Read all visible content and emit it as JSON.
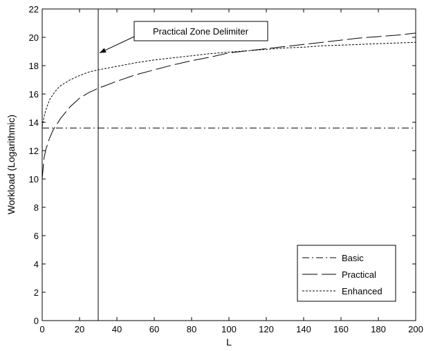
{
  "chart_data": {
    "type": "line",
    "title": "",
    "xlabel": "L",
    "ylabel": "Workload (Logarithmic)",
    "xlim": [
      0,
      200
    ],
    "ylim": [
      0,
      22
    ],
    "xticks": [
      0,
      20,
      40,
      60,
      80,
      100,
      120,
      140,
      160,
      180,
      200
    ],
    "yticks": [
      0,
      2,
      4,
      6,
      8,
      10,
      12,
      14,
      16,
      18,
      20,
      22
    ],
    "grid": false,
    "legend_position": "bottom-right",
    "series": [
      {
        "name": "Basic",
        "line_style": "dash-dot",
        "color": "#000000",
        "x": [
          0,
          200
        ],
        "y": [
          13.6,
          13.6
        ]
      },
      {
        "name": "Practical",
        "line_style": "dashed",
        "color": "#000000",
        "x": [
          0,
          1,
          2,
          4,
          6,
          8,
          10,
          15,
          20,
          25,
          30,
          40,
          50,
          60,
          70,
          80,
          90,
          100,
          110,
          120,
          130,
          140,
          150,
          160,
          170,
          180,
          190,
          200
        ],
        "y": [
          10.0,
          11.5,
          12.1,
          12.9,
          13.5,
          13.9,
          14.3,
          15.1,
          15.7,
          16.1,
          16.4,
          16.9,
          17.35,
          17.7,
          18.05,
          18.35,
          18.6,
          18.9,
          19.05,
          19.2,
          19.35,
          19.5,
          19.65,
          19.8,
          19.95,
          20.05,
          20.15,
          20.3
        ]
      },
      {
        "name": "Enhanced",
        "line_style": "dotted",
        "color": "#000000",
        "x": [
          0,
          1,
          2,
          4,
          6,
          8,
          10,
          15,
          20,
          25,
          30,
          40,
          50,
          60,
          70,
          80,
          90,
          100,
          110,
          120,
          130,
          140,
          150,
          160,
          170,
          180,
          190,
          200
        ],
        "y": [
          13.7,
          14.4,
          14.9,
          15.6,
          16.0,
          16.35,
          16.6,
          17.0,
          17.3,
          17.55,
          17.7,
          17.95,
          18.2,
          18.4,
          18.55,
          18.7,
          18.85,
          18.95,
          19.05,
          19.15,
          19.25,
          19.3,
          19.4,
          19.45,
          19.5,
          19.55,
          19.6,
          19.65
        ]
      }
    ],
    "vertical_line": {
      "x": 30
    },
    "annotations": [
      {
        "text": "Practical Zone Delimiter",
        "target_x": 30,
        "target_y": 18.9
      }
    ]
  }
}
